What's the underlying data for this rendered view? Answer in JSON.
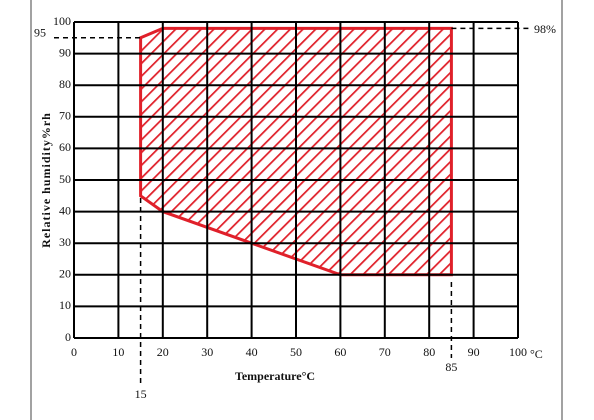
{
  "chart_data": {
    "type": "region",
    "xlabel": "Temperature°C",
    "ylabel": "Relative humidity%rh",
    "x_unit": "°C",
    "xlim": [
      0,
      100
    ],
    "xticks": [
      0,
      10,
      20,
      30,
      40,
      50,
      60,
      70,
      80,
      90,
      100
    ],
    "ylim": [
      0,
      100
    ],
    "yticks": [
      0,
      10,
      20,
      30,
      40,
      50,
      60,
      70,
      80,
      90,
      100
    ],
    "grid": true,
    "region": {
      "x": [
        15,
        20,
        85,
        85,
        60,
        40,
        20,
        15
      ],
      "y": [
        95,
        98,
        98,
        20,
        20,
        30,
        40,
        45
      ],
      "color": "#e0202a"
    },
    "yrefs_left": [
      95
    ],
    "yrefs_right": [
      {
        "value": 98,
        "label": "98%"
      }
    ],
    "xrefs": [
      15,
      85
    ]
  }
}
